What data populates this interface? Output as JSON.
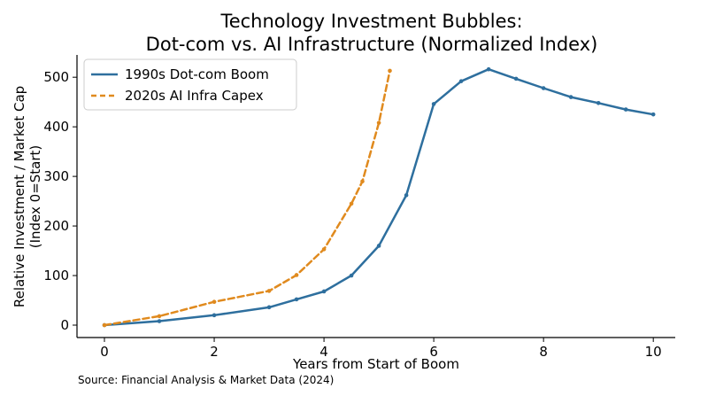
{
  "chart_data": {
    "type": "line",
    "title_line1": "Technology Investment Bubbles:",
    "title_line2": "Dot-com vs. AI Infrastructure (Normalized Index)",
    "xlabel": "Years from Start of Boom",
    "ylabel_line1": "Relative Investment / Market Cap",
    "ylabel_line2": "(Index 0=Start)",
    "source": "Source: Financial Analysis & Market Data (2024)",
    "xlim": [
      -0.5,
      10.4
    ],
    "ylim": [
      -25,
      545
    ],
    "xticks": [
      0,
      2,
      4,
      6,
      8,
      10
    ],
    "yticks": [
      0,
      100,
      200,
      300,
      400,
      500
    ],
    "grid": false,
    "legend_position": "upper-left",
    "series": [
      {
        "name": "1990s Dot-com Boom",
        "color": "#2e6f9e",
        "style": "solid",
        "x": [
          0,
          1,
          2,
          3,
          3.5,
          4,
          4.5,
          5,
          5.5,
          6,
          6.5,
          7,
          7.5,
          8,
          8.5,
          9,
          9.5,
          10
        ],
        "y": [
          0,
          8,
          20,
          36,
          52,
          68,
          100,
          160,
          262,
          446,
          492,
          516,
          497,
          478,
          460,
          448,
          435,
          425
        ]
      },
      {
        "name": "2020s AI Infra Capex",
        "color": "#e08a1e",
        "style": "dashed",
        "x": [
          0,
          1,
          2,
          3,
          3.5,
          4,
          4.5,
          4.7,
          5,
          5.2
        ],
        "y": [
          0,
          18,
          47,
          69,
          101,
          153,
          245,
          290,
          408,
          513
        ]
      }
    ]
  }
}
